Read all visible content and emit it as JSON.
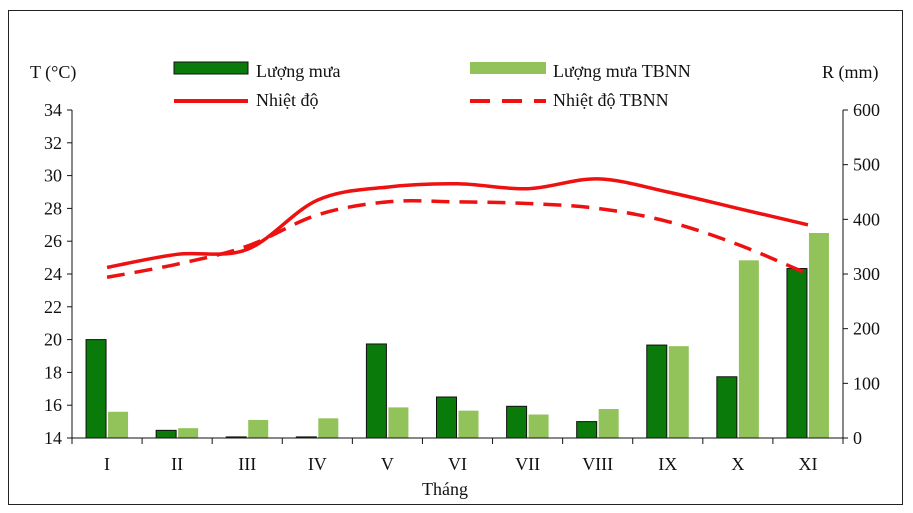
{
  "chart_data": {
    "type": "bar",
    "title": "",
    "xlabel": "Tháng",
    "ylabel_left": "T (°C)",
    "ylabel_right": "R (mm)",
    "categories": [
      "I",
      "II",
      "III",
      "IV",
      "V",
      "VI",
      "VII",
      "VIII",
      "IX",
      "X",
      "XI"
    ],
    "left_axis": {
      "ylim": [
        14,
        34
      ],
      "ticks": [
        "14",
        "16",
        "18",
        "20",
        "22",
        "24",
        "26",
        "28",
        "30",
        "32",
        "34"
      ]
    },
    "right_axis": {
      "ylim": [
        0,
        600
      ],
      "ticks": [
        "0",
        "100",
        "200",
        "300",
        "400",
        "500",
        "600"
      ]
    },
    "bar_series": [
      {
        "name": "Lượng mưa",
        "axis": "right",
        "color": "#0a7a0a",
        "values": [
          180,
          14,
          2,
          2,
          172,
          75,
          58,
          30,
          170,
          112,
          310
        ]
      },
      {
        "name": "Lượng mưa TBNN",
        "axis": "right",
        "color": "#92c35a",
        "values": [
          48,
          18,
          33,
          36,
          56,
          50,
          43,
          53,
          168,
          325,
          375
        ]
      }
    ],
    "line_series": [
      {
        "name": "Nhiệt độ",
        "axis": "left",
        "color": "#ee1111",
        "dashed": false,
        "values": [
          24.4,
          25.2,
          25.5,
          28.5,
          29.3,
          29.5,
          29.2,
          29.8,
          29.0,
          28.0,
          27.0
        ]
      },
      {
        "name": "Nhiệt độ TBNN",
        "axis": "left",
        "color": "#ee1111",
        "dashed": true,
        "values": [
          23.8,
          24.6,
          25.7,
          27.6,
          28.4,
          28.4,
          28.3,
          28.0,
          27.2,
          25.8,
          24.0
        ]
      }
    ],
    "legend_placement": "top",
    "grid": false
  }
}
